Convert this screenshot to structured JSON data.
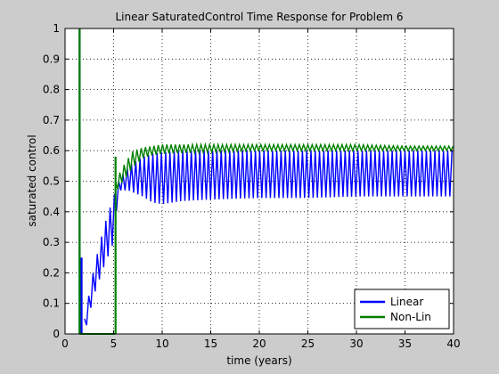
{
  "chart_data": {
    "type": "line",
    "title": "Linear SaturatedControl Time Response for Problem 6",
    "xlabel": "time (years)",
    "ylabel": "saturated control",
    "xlim": [
      0,
      40
    ],
    "ylim": [
      0,
      1
    ],
    "x_ticks": [
      "0",
      "5",
      "10",
      "15",
      "20",
      "25",
      "30",
      "35",
      "40"
    ],
    "y_ticks": [
      "0",
      "0.1",
      "0.2",
      "0.3",
      "0.4",
      "0.5",
      "0.6",
      "0.7",
      "0.8",
      "0.9",
      "1"
    ],
    "grid": true,
    "legend_position": "bottom-right",
    "series": [
      {
        "name": "Linear",
        "color": "#0000ff",
        "band": {
          "x": [
            2.0,
            3.0,
            4.0,
            5.0,
            5.5,
            6.5,
            8.0,
            9.0,
            10.0,
            12.0,
            15.0,
            20.0,
            25.0,
            30.0,
            35.0,
            40.0
          ],
          "upper": [
            0.05,
            0.22,
            0.35,
            0.45,
            0.5,
            0.55,
            0.58,
            0.59,
            0.595,
            0.6,
            0.6,
            0.6,
            0.6,
            0.6,
            0.6,
            0.6
          ],
          "lower": [
            0.0,
            0.13,
            0.22,
            0.3,
            0.47,
            0.47,
            0.45,
            0.43,
            0.425,
            0.435,
            0.44,
            0.445,
            0.445,
            0.45,
            0.45,
            0.45
          ]
        },
        "spikes": [
          [
            1.5,
            0.0,
            1.0
          ],
          [
            1.7,
            0.0,
            0.25
          ]
        ]
      },
      {
        "name": "Non-Lin",
        "color": "#008000",
        "band": {
          "x": [
            5.2,
            5.5,
            6.0,
            7.0,
            8.0,
            9.0,
            10.0,
            15.0,
            20.0,
            25.0,
            30.0,
            35.0,
            40.0
          ],
          "upper": [
            0.5,
            0.52,
            0.55,
            0.6,
            0.61,
            0.615,
            0.62,
            0.62,
            0.62,
            0.62,
            0.62,
            0.615,
            0.615
          ],
          "lower": [
            0.46,
            0.48,
            0.5,
            0.545,
            0.575,
            0.585,
            0.59,
            0.595,
            0.6,
            0.6,
            0.6,
            0.6,
            0.6
          ]
        },
        "baseline": [
          [
            1.5,
            0.0
          ],
          [
            5.2,
            0.0
          ]
        ],
        "spikes": [
          [
            1.5,
            0.0,
            1.0
          ],
          [
            5.2,
            0.0,
            0.58
          ]
        ]
      }
    ]
  }
}
